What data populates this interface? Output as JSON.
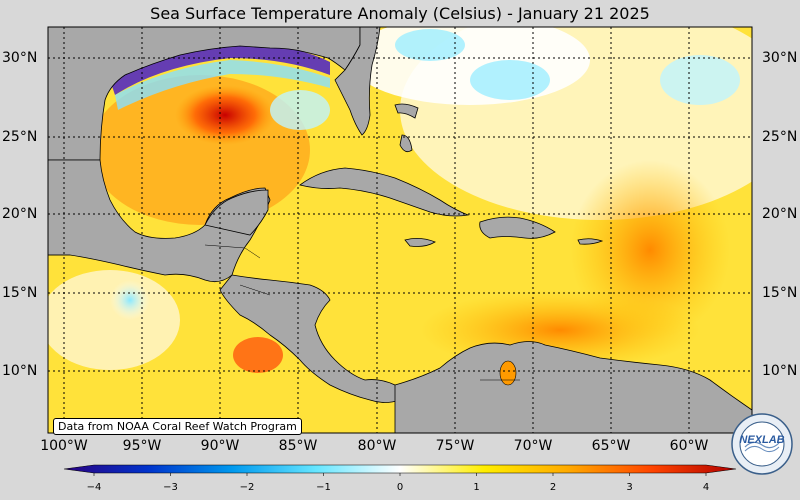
{
  "title": "Sea Surface Temperature Anomaly (Celsius) - January 21 2025",
  "lat_labels": [
    "30°N",
    "25°N",
    "20°N",
    "15°N",
    "10°N"
  ],
  "lon_labels": [
    "100°W",
    "95°W",
    "90°W",
    "85°W",
    "80°W",
    "75°W",
    "70°W",
    "65°W",
    "60°W"
  ],
  "credit": "Data from NOAA Coral Reef Watch Program",
  "colorbar": {
    "ticks": [
      "−4",
      "−3",
      "−2",
      "−1",
      "0",
      "1",
      "2",
      "3",
      "4"
    ],
    "colors": [
      "#2a0080",
      "#0033cc",
      "#0099ee",
      "#66e6ff",
      "#ffffff",
      "#ffee00",
      "#ffaa00",
      "#ff4400",
      "#b00000"
    ]
  },
  "logo_text": "NEXLAB",
  "colors": {
    "land": "#a8a8a8",
    "background": "#d8d8d8"
  }
}
